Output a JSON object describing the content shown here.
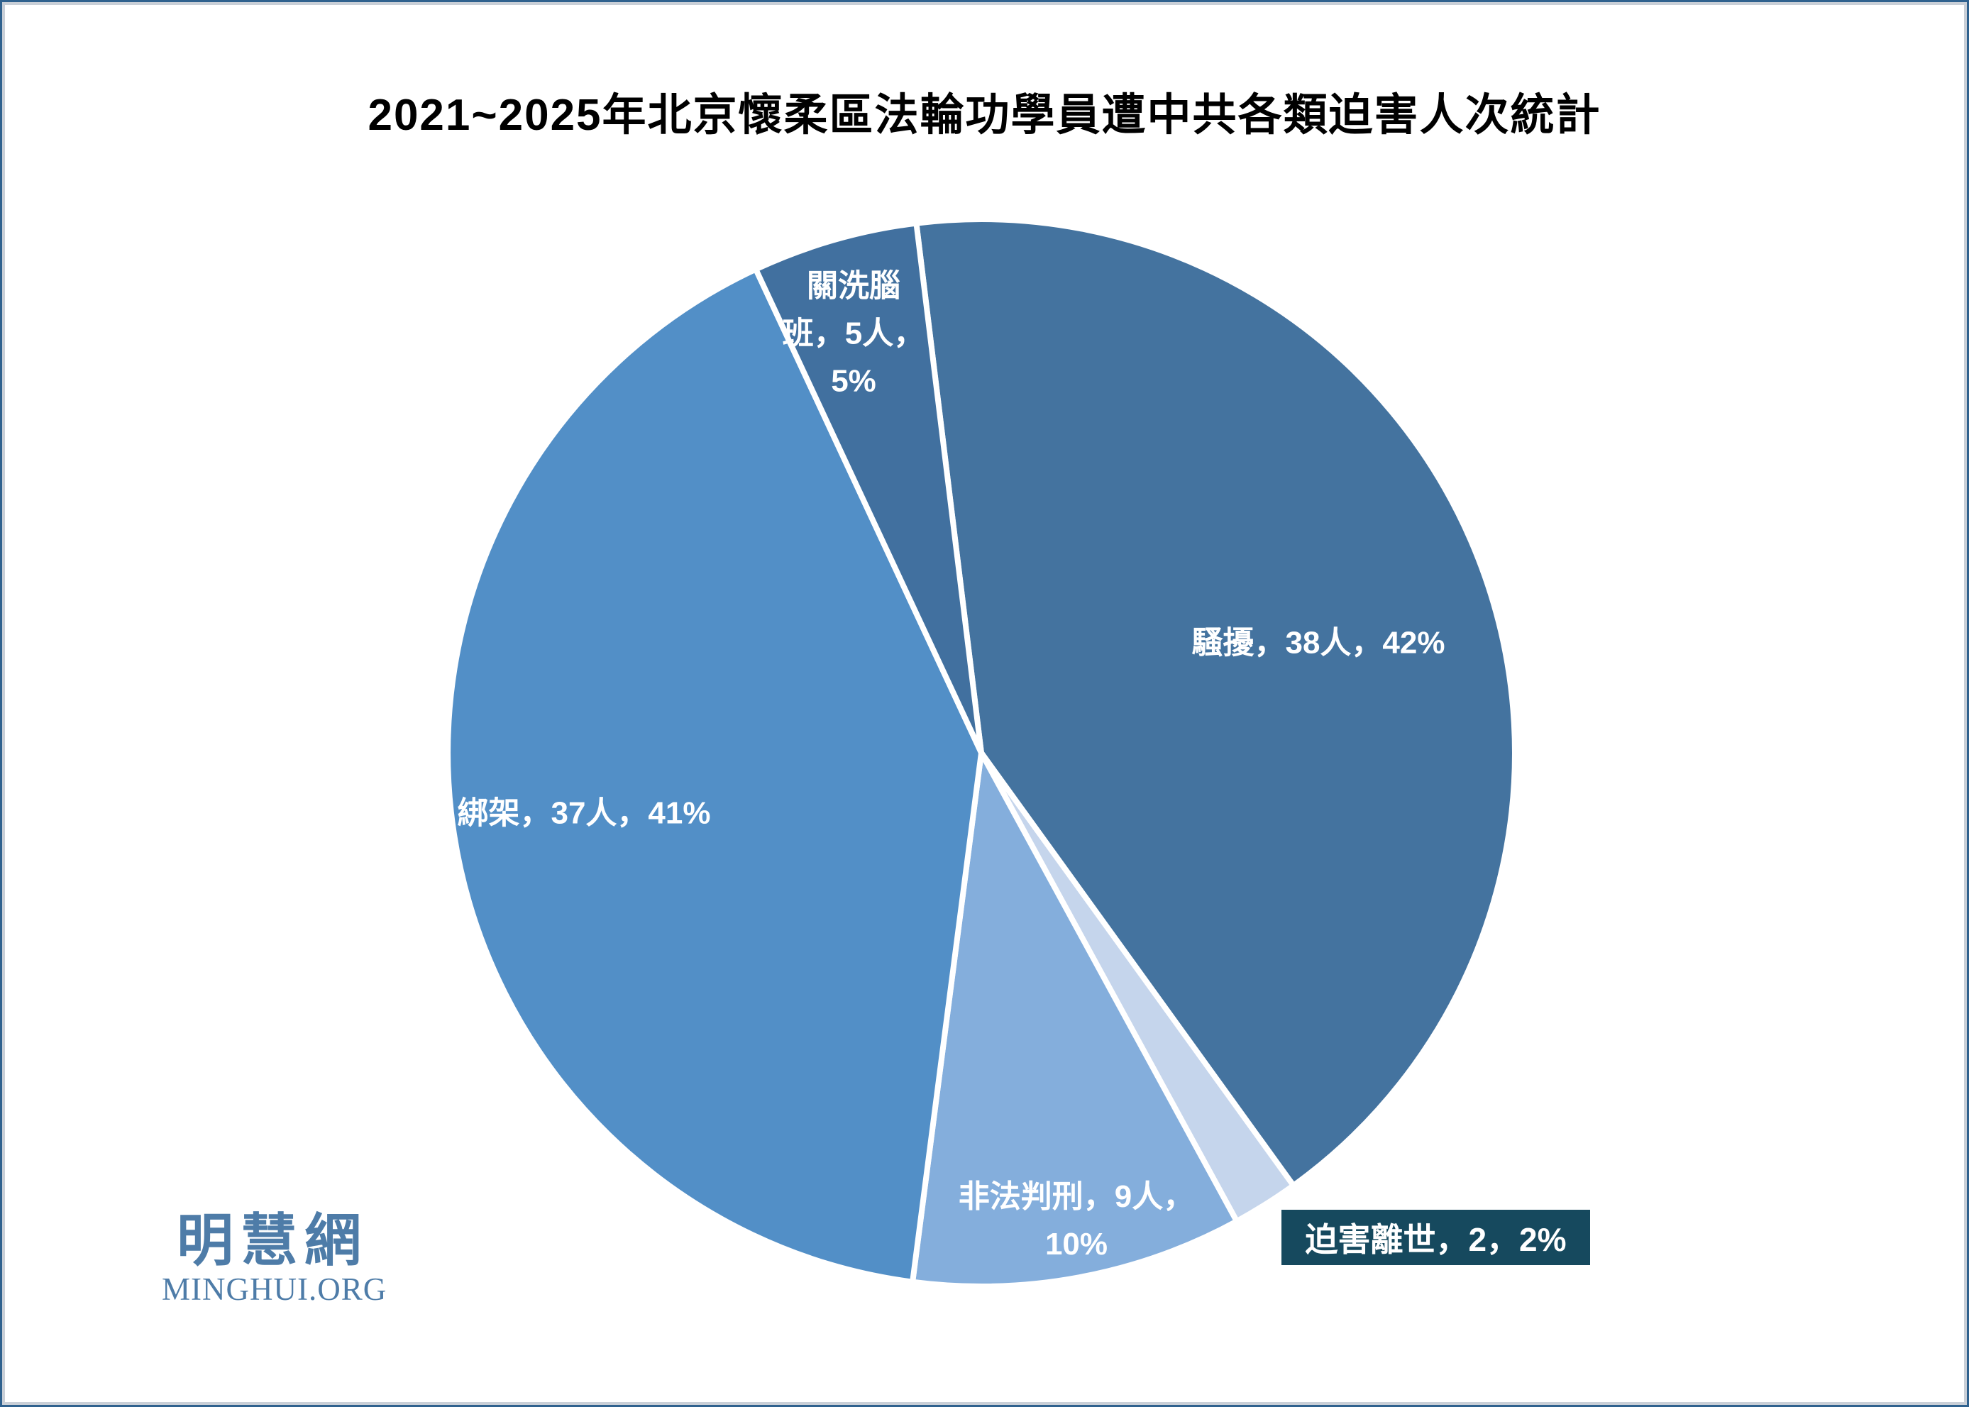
{
  "page": {
    "title": "2021~2025年北京懷柔區法輪功學員遭中共各類迫害人次統計"
  },
  "chart_data": {
    "type": "pie",
    "title": "2021~2025年北京懷柔區法輪功學員遭中共各類迫害人次統計",
    "categories": [
      "騷擾",
      "迫害離世",
      "非法判刑",
      "綁架",
      "關洗腦班"
    ],
    "values": [
      38,
      2,
      9,
      37,
      5
    ],
    "percents": [
      42,
      2,
      10,
      41,
      5
    ],
    "unit": "人",
    "start_angle_deg": -7,
    "clockwise": true,
    "legend": "none",
    "colors": [
      "#44739F",
      "#C5D5EC",
      "#84AEDC",
      "#528FC7",
      "#41709F"
    ],
    "slice_border_color": "#ffffff",
    "label_box_color": "#16495E",
    "labels": [
      {
        "slice": "騷擾",
        "lines": [
          "騷擾，38人，42%"
        ]
      },
      {
        "slice": "迫害離世",
        "lines": [
          "迫害離世，2，2%"
        ]
      },
      {
        "slice": "非法判刑",
        "lines": [
          "非法判刑，9人，",
          "10%"
        ]
      },
      {
        "slice": "綁架",
        "lines": [
          "綁架，37人，41%"
        ]
      },
      {
        "slice": "關洗腦班",
        "lines": [
          "關洗腦",
          "班，5人，",
          "5%"
        ]
      }
    ]
  },
  "logo": {
    "cjk": "明慧網",
    "latin": "MINGHUI.ORG"
  }
}
